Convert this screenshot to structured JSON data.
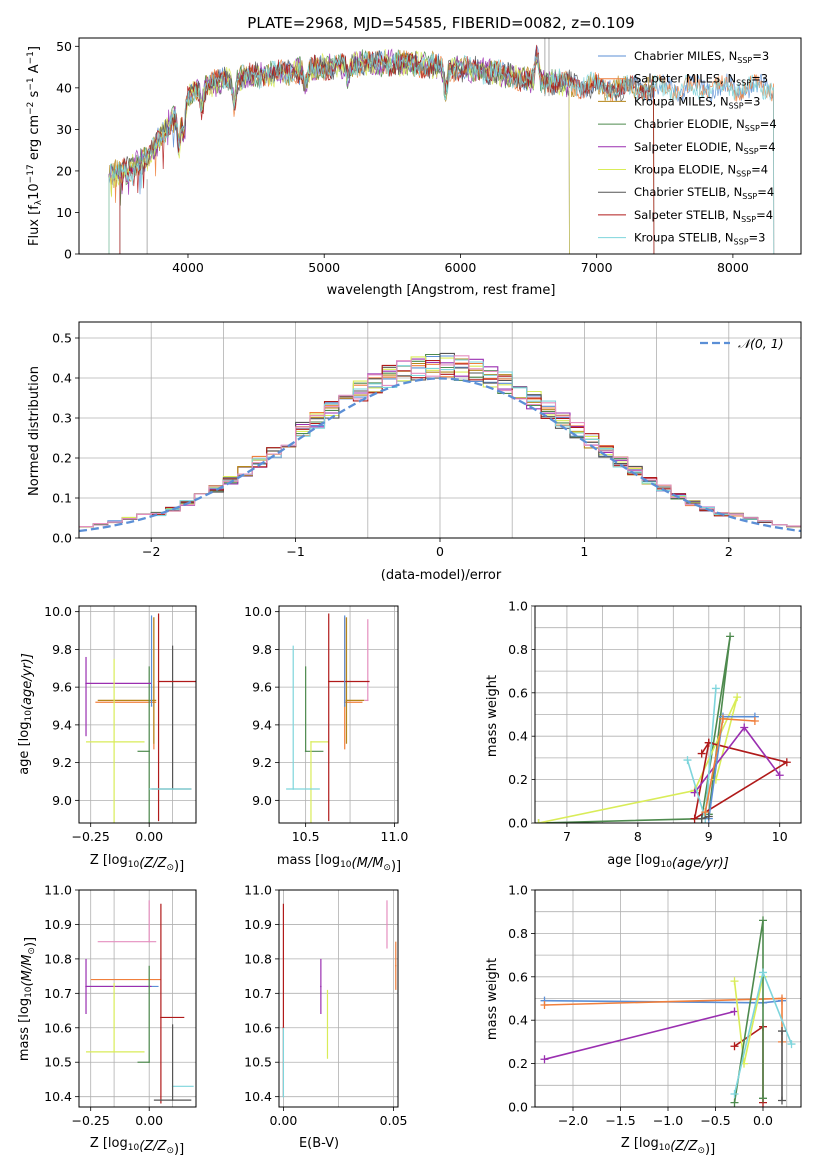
{
  "colors": {
    "chabrier_miles": "#5b8fd6",
    "salpeter_miles": "#f07f3c",
    "kroupa_miles": "#b5861a",
    "chabrier_elodie": "#4e8a4e",
    "salpeter_elodie": "#9a2fb0",
    "kroupa_elodie": "#d9ec58",
    "chabrier_stelib": "#555555",
    "salpeter_stelib": "#b01a1a",
    "kroupa_stelib": "#7ed5dc",
    "pink": "#e58fbf"
  },
  "chart_data": [
    {
      "id": "spectrum",
      "type": "line",
      "title": "PLATE=2968, MJD=54585, FIBERID=0082, z=0.109",
      "xlabel": "wavelength [Angstrom, rest frame]",
      "ylabel": "Flux [f",
      "ylabel_parts": [
        "Flux [f",
        "λ",
        "10",
        "−17",
        " erg cm",
        "−2",
        " s",
        "−1",
        " A",
        "−1",
        "]"
      ],
      "xlim": [
        3200,
        8500
      ],
      "ylim": [
        0,
        52
      ],
      "xticks": [
        "4000",
        "5000",
        "6000",
        "7000",
        "8000"
      ],
      "yticks": [
        "0",
        "10",
        "20",
        "30",
        "40",
        "50"
      ],
      "legend_position": "top-right",
      "legend": [
        {
          "label": "Chabrier MILES, N",
          "sub": "SSP",
          "eq": "=3",
          "color_key": "chabrier_miles"
        },
        {
          "label": "Salpeter MILES, N",
          "sub": "SSP",
          "eq": "=3",
          "color_key": "salpeter_miles"
        },
        {
          "label": "Kroupa MILES, N",
          "sub": "SSP",
          "eq": "=3",
          "color_key": "kroupa_miles"
        },
        {
          "label": "Chabrier ELODIE, N",
          "sub": "SSP",
          "eq": "=4",
          "color_key": "chabrier_elodie"
        },
        {
          "label": "Salpeter ELODIE, N",
          "sub": "SSP",
          "eq": "=4",
          "color_key": "salpeter_elodie"
        },
        {
          "label": "Kroupa ELODIE, N",
          "sub": "SSP",
          "eq": "=4",
          "color_key": "kroupa_elodie"
        },
        {
          "label": "Chabrier STELIB, N",
          "sub": "SSP",
          "eq": "=4",
          "color_key": "chabrier_stelib"
        },
        {
          "label": "Salpeter STELIB, N",
          "sub": "SSP",
          "eq": "=4",
          "color_key": "salpeter_stelib"
        },
        {
          "label": "Kroupa STELIB, N",
          "sub": "SSP",
          "eq": "=3",
          "color_key": "kroupa_stelib"
        }
      ],
      "continuum": {
        "x": [
          3400,
          3550,
          3700,
          3850,
          3950,
          4050,
          4300,
          4500,
          4800,
          5000,
          5300,
          5600,
          5900,
          6200,
          6500,
          6800,
          7100,
          7400,
          7700,
          8000,
          8300
        ],
        "y": [
          19,
          20,
          23,
          31,
          36,
          40,
          42,
          43,
          44,
          45,
          46,
          46,
          45,
          44,
          42,
          41,
          40,
          40,
          40,
          40,
          40
        ]
      },
      "grid": false
    },
    {
      "id": "residuals",
      "type": "histogram",
      "xlabel": "(data-model)/error",
      "ylabel": "Normed distribution",
      "xlim": [
        -2.5,
        2.5
      ],
      "ylim": [
        0,
        0.54
      ],
      "xticks": [
        "−2",
        "−1",
        "0",
        "1",
        "2"
      ],
      "yticks": [
        "0.0",
        "0.1",
        "0.2",
        "0.3",
        "0.4",
        "0.5"
      ],
      "grid": true,
      "legend_position": "top-right",
      "reference_curve": {
        "label": "𝒩(0, 1)",
        "mean": 0,
        "sigma": 1,
        "style": "dashed",
        "color": "#5b8fd6"
      },
      "bin_width": 0.1
    },
    {
      "id": "age_vs_Z",
      "type": "errorbar",
      "xlabel": "Z [log",
      "xlabel_parts": [
        "Z [log",
        "10",
        "(Z/Z",
        "⊙",
        ")]"
      ],
      "ylabel_parts": [
        "age  [log",
        "10",
        "(age/yr)]"
      ],
      "xlim": [
        -0.3,
        0.2
      ],
      "ylim": [
        8.88,
        10.03
      ],
      "xticks": [
        "−0.25",
        "0.00"
      ],
      "yticks": [
        "9.0",
        "9.2",
        "9.4",
        "9.6",
        "9.8",
        "10.0"
      ],
      "grid": true,
      "points": [
        {
          "x": 0.02,
          "xerr": [
            0.25,
            0.01
          ],
          "y": 9.52,
          "yerr": [
            0.25,
            0.45
          ],
          "color_key": "salpeter_miles"
        },
        {
          "x": 0.02,
          "xerr": [
            0.24,
            0.01
          ],
          "y": 9.53,
          "yerr": [
            0.23,
            0.44
          ],
          "color_key": "kroupa_miles"
        },
        {
          "x": 0.0,
          "xerr": [
            0.05,
            0.0
          ],
          "y": 9.26,
          "yerr": [
            0.45,
            0.45
          ],
          "color_key": "chabrier_elodie"
        },
        {
          "x": -0.27,
          "xerr": [
            0.0,
            0.28
          ],
          "y": 9.62,
          "yerr": [
            0.28,
            0.14
          ],
          "color_key": "salpeter_elodie"
        },
        {
          "x": -0.15,
          "xerr": [
            0.12,
            0.13
          ],
          "y": 9.31,
          "yerr": [
            0.43,
            0.44
          ],
          "color_key": "kroupa_elodie"
        },
        {
          "x": 0.1,
          "xerr": [
            0.09,
            0.08
          ],
          "y": 9.06,
          "yerr": [
            0.0,
            0.76
          ],
          "color_key": "chabrier_stelib"
        },
        {
          "x": 0.04,
          "xerr": [
            0.0,
            0.27
          ],
          "y": 9.63,
          "yerr": [
            0.74,
            0.36
          ],
          "color_key": "salpeter_stelib"
        },
        {
          "x": 0.1,
          "xerr": [
            0.1,
            0.08
          ],
          "y": 9.06,
          "yerr": [
            0.0,
            0.0
          ],
          "color_key": "kroupa_stelib"
        },
        {
          "x": 0.01,
          "xerr": [
            0.0,
            0.0
          ],
          "y": 9.5,
          "yerr": [
            0.0,
            0.48
          ],
          "color_key": "chabrier_miles"
        }
      ]
    },
    {
      "id": "age_vs_mass",
      "type": "errorbar",
      "xlabel_parts": [
        "mass [log",
        "10",
        "(M/M",
        "⊙",
        ")]"
      ],
      "xlim": [
        10.35,
        11.02
      ],
      "ylim": [
        8.88,
        10.03
      ],
      "xticks": [
        "10.5",
        "11.0"
      ],
      "yticks": [
        "9.0",
        "9.2",
        "9.4",
        "9.6",
        "9.8",
        "10.0"
      ],
      "grid": true,
      "points": [
        {
          "x": 10.72,
          "xerr": [
            0.0,
            0.1
          ],
          "y": 9.52,
          "yerr": [
            0.25,
            0.45
          ],
          "color_key": "salpeter_miles"
        },
        {
          "x": 10.73,
          "xerr": [
            0.0,
            0.1
          ],
          "y": 9.53,
          "yerr": [
            0.23,
            0.44
          ],
          "color_key": "kroupa_miles"
        },
        {
          "x": 10.85,
          "xerr": [
            0.02,
            0.0
          ],
          "y": 9.53,
          "yerr": [
            0.0,
            0.43
          ],
          "color_key": "pink"
        },
        {
          "x": 10.5,
          "xerr": [
            0.0,
            0.1
          ],
          "y": 9.26,
          "yerr": [
            0.0,
            0.45
          ],
          "color_key": "chabrier_elodie"
        },
        {
          "x": 10.53,
          "xerr": [
            0.0,
            0.1
          ],
          "y": 9.31,
          "yerr": [
            0.43,
            0.0
          ],
          "color_key": "kroupa_elodie"
        },
        {
          "x": 10.63,
          "xerr": [
            0.0,
            0.23
          ],
          "y": 9.63,
          "yerr": [
            0.74,
            0.36
          ],
          "color_key": "salpeter_stelib"
        },
        {
          "x": 10.43,
          "xerr": [
            0.04,
            0.15
          ],
          "y": 9.06,
          "yerr": [
            0.0,
            0.76
          ],
          "color_key": "kroupa_stelib"
        },
        {
          "x": 10.72,
          "xerr": [
            0.0,
            0.0
          ],
          "y": 9.5,
          "yerr": [
            0.0,
            0.48
          ],
          "color_key": "chabrier_miles"
        }
      ]
    },
    {
      "id": "weight_vs_age",
      "type": "line",
      "xlabel_parts": [
        "age  [log",
        "10",
        "(age/yr)]"
      ],
      "ylabel": "mass weight",
      "xlim": [
        6.55,
        10.3
      ],
      "ylim": [
        0,
        1.0
      ],
      "xticks": [
        "7",
        "8",
        "9",
        "10"
      ],
      "yticks": [
        "0.0",
        "0.2",
        "0.4",
        "0.6",
        "0.8",
        "1.0"
      ],
      "grid": true,
      "series": [
        {
          "color_key": "chabrier_elodie",
          "x": [
            6.6,
            8.9,
            9.3,
            9.0
          ],
          "y": [
            0.0,
            0.02,
            0.86,
            0.04
          ]
        },
        {
          "color_key": "kroupa_elodie",
          "x": [
            6.6,
            8.8,
            9.4,
            9.1
          ],
          "y": [
            0.0,
            0.15,
            0.58,
            0.2
          ]
        },
        {
          "color_key": "salpeter_stelib",
          "x": [
            8.9,
            9.0,
            10.1,
            8.8,
            9.0
          ],
          "y": [
            0.32,
            0.37,
            0.28,
            0.02,
            0.37
          ]
        },
        {
          "color_key": "salpeter_elodie",
          "x": [
            8.8,
            9.5,
            10.0
          ],
          "y": [
            0.14,
            0.44,
            0.22
          ]
        },
        {
          "color_key": "kroupa_stelib",
          "x": [
            8.7,
            8.95,
            9.1
          ],
          "y": [
            0.29,
            0.02,
            0.62
          ]
        },
        {
          "color_key": "chabrier_miles",
          "x": [
            9.0,
            9.2,
            9.65
          ],
          "y": [
            0.02,
            0.49,
            0.49
          ]
        },
        {
          "color_key": "salpeter_miles",
          "x": [
            8.95,
            9.2,
            9.65
          ],
          "y": [
            0.05,
            0.48,
            0.47
          ]
        },
        {
          "color_key": "chabrier_stelib",
          "x": [
            8.9,
            9.0
          ],
          "y": [
            0.02,
            0.03
          ]
        }
      ]
    },
    {
      "id": "mass_vs_Z",
      "type": "errorbar",
      "xlabel_parts": [
        "Z [log",
        "10",
        "(Z/Z",
        "⊙",
        ")]"
      ],
      "ylabel_parts": [
        "mass [log",
        "10",
        "(M/M",
        "⊙",
        ")]"
      ],
      "xlim": [
        -0.3,
        0.2
      ],
      "ylim": [
        10.37,
        11.0
      ],
      "xticks": [
        "−0.25",
        "0.00"
      ],
      "yticks": [
        "10.4",
        "10.5",
        "10.6",
        "10.7",
        "10.8",
        "10.9",
        "11.0"
      ],
      "grid": true,
      "points": [
        {
          "x": 0.0,
          "xerr": [
            0.22,
            0.03
          ],
          "y": 10.85,
          "yerr": [
            0.0,
            0.12
          ],
          "color_key": "pink"
        },
        {
          "x": 0.0,
          "xerr": [
            0.25,
            0.05
          ],
          "y": 10.74,
          "yerr": [
            0.0,
            0.0
          ],
          "color_key": "salpeter_miles"
        },
        {
          "x": 0.0,
          "xerr": [
            0.27,
            0.04
          ],
          "y": 10.72,
          "yerr": [
            0.0,
            0.0
          ],
          "color_key": "chabrier_miles"
        },
        {
          "x": -0.27,
          "xerr": [
            0.0,
            0.28
          ],
          "y": 10.72,
          "yerr": [
            0.08,
            0.08
          ],
          "color_key": "salpeter_elodie"
        },
        {
          "x": -0.15,
          "xerr": [
            0.12,
            0.13
          ],
          "y": 10.53,
          "yerr": [
            0.0,
            0.2
          ],
          "color_key": "kroupa_elodie"
        },
        {
          "x": 0.0,
          "xerr": [
            0.05,
            0.0
          ],
          "y": 10.5,
          "yerr": [
            0.0,
            0.28
          ],
          "color_key": "chabrier_elodie"
        },
        {
          "x": 0.05,
          "xerr": [
            0.0,
            0.1
          ],
          "y": 10.63,
          "yerr": [
            0.25,
            0.33
          ],
          "color_key": "salpeter_stelib"
        },
        {
          "x": 0.1,
          "xerr": [
            0.0,
            0.09
          ],
          "y": 10.43,
          "yerr": [
            0.0,
            0.0
          ],
          "color_key": "kroupa_stelib"
        },
        {
          "x": 0.1,
          "xerr": [
            0.08,
            0.08
          ],
          "y": 10.39,
          "yerr": [
            0.0,
            0.22
          ],
          "color_key": "chabrier_stelib"
        }
      ]
    },
    {
      "id": "mass_vs_ebv",
      "type": "errorbar",
      "xlabel": "E(B-V)",
      "xlim": [
        -0.002,
        0.052
      ],
      "ylim": [
        10.37,
        11.0
      ],
      "xticks": [
        "0.00",
        "0.05"
      ],
      "yticks": [
        "10.4",
        "10.5",
        "10.6",
        "10.7",
        "10.8",
        "10.9",
        "11.0"
      ],
      "grid": true,
      "points": [
        {
          "x": 0.0,
          "y": 10.6,
          "yerr": [
            0.2,
            0.36
          ],
          "color_key": "salpeter_stelib"
        },
        {
          "x": 0.0,
          "y": 10.4,
          "yerr": [
            0.0,
            0.2
          ],
          "color_key": "kroupa_stelib"
        },
        {
          "x": 0.017,
          "y": 10.72,
          "yerr": [
            0.08,
            0.08
          ],
          "color_key": "salpeter_elodie"
        },
        {
          "x": 0.02,
          "y": 10.6,
          "yerr": [
            0.09,
            0.11
          ],
          "color_key": "kroupa_elodie"
        },
        {
          "x": 0.047,
          "y": 10.9,
          "yerr": [
            0.07,
            0.07
          ],
          "color_key": "pink"
        },
        {
          "x": 0.051,
          "y": 10.78,
          "yerr": [
            0.07,
            0.07
          ],
          "color_key": "salpeter_miles"
        }
      ]
    },
    {
      "id": "weight_vs_Z",
      "type": "line",
      "xlabel_parts": [
        "Z [log",
        "10",
        "(Z/Z",
        "⊙",
        ")]"
      ],
      "ylabel": "mass weight",
      "xlim": [
        -2.4,
        0.4
      ],
      "ylim": [
        0,
        1.0
      ],
      "xticks": [
        "−2.0",
        "−1.5",
        "−1.0",
        "−0.5",
        "0.0"
      ],
      "yticks": [
        "0.0",
        "0.2",
        "0.4",
        "0.6",
        "0.8",
        "1.0"
      ],
      "grid": true,
      "series": [
        {
          "color_key": "chabrier_miles",
          "x": [
            -2.3,
            0.0,
            0.2
          ],
          "y": [
            0.49,
            0.48,
            0.49
          ]
        },
        {
          "color_key": "salpeter_miles",
          "x": [
            -2.3,
            0.2,
            0.2
          ],
          "y": [
            0.47,
            0.5,
            0.3
          ]
        },
        {
          "color_key": "salpeter_elodie",
          "x": [
            -2.3,
            -0.3
          ],
          "y": [
            0.22,
            0.44
          ]
        },
        {
          "color_key": "salpeter_stelib",
          "x": [
            -0.3,
            0.0,
            0.0
          ],
          "y": [
            0.28,
            0.37,
            0.02
          ]
        },
        {
          "color_key": "kroupa_elodie",
          "x": [
            -0.3,
            -0.2,
            0.0
          ],
          "y": [
            0.58,
            0.2,
            0.6
          ]
        },
        {
          "color_key": "chabrier_elodie",
          "x": [
            -0.3,
            0.0,
            0.0
          ],
          "y": [
            0.02,
            0.86,
            0.04
          ]
        },
        {
          "color_key": "kroupa_stelib",
          "x": [
            -0.3,
            0.0,
            0.3
          ],
          "y": [
            0.06,
            0.62,
            0.29
          ]
        },
        {
          "color_key": "chabrier_stelib",
          "x": [
            0.2,
            0.2
          ],
          "y": [
            0.03,
            0.35
          ]
        }
      ]
    }
  ]
}
